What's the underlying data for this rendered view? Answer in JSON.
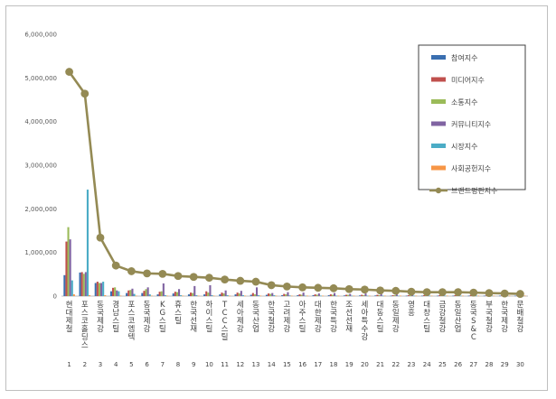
{
  "chart_data": {
    "type": "bar",
    "ylim": [
      0,
      6000000
    ],
    "yticks": [
      "0",
      "1,000,000",
      "2,000,000",
      "3,000,000",
      "4,000,000",
      "5,000,000",
      "6,000,000"
    ],
    "ytick_values": [
      0,
      1000000,
      2000000,
      3000000,
      4000000,
      5000000,
      6000000
    ],
    "grid": false,
    "legend_position": "top-right",
    "ranks": [
      "1",
      "2",
      "3",
      "4",
      "5",
      "6",
      "7",
      "8",
      "9",
      "10",
      "11",
      "12",
      "13",
      "14",
      "15",
      "16",
      "17",
      "18",
      "19",
      "20",
      "21",
      "22",
      "23",
      "24",
      "25",
      "26",
      "27",
      "28",
      "29",
      "30"
    ],
    "categories": [
      "현대제철",
      "포스코홀딩스",
      "동국제강",
      "경남스틸",
      "포스코엠텍",
      "동국제강",
      "KG스틸",
      "휴스틸",
      "한국선재",
      "하이스틸",
      "TCC스틸",
      "세아제강",
      "동국산업",
      "한국철강",
      "고려제강",
      "아주스틸",
      "대한제강",
      "한국특강",
      "조선선재",
      "세아특수강",
      "대동스틸",
      "동일제강",
      "영흥",
      "대창스틸",
      "금강철강",
      "동일산업",
      "동국S&C",
      "부국철강",
      "한국제강",
      "문배철강"
    ],
    "series": [
      {
        "name": "참여지수",
        "color": "#3a6fb0",
        "values": [
          480000,
          540000,
          300000,
          110000,
          70000,
          70000,
          40000,
          60000,
          40000,
          40000,
          40000,
          40000,
          30000,
          30000,
          20000,
          20000,
          20000,
          20000,
          15000,
          15000,
          15000,
          10000,
          10000,
          10000,
          10000,
          10000,
          10000,
          10000,
          10000,
          10000
        ]
      },
      {
        "name": "미디어지수",
        "color": "#c0504d",
        "values": [
          1250000,
          550000,
          330000,
          190000,
          130000,
          120000,
          100000,
          100000,
          80000,
          110000,
          80000,
          80000,
          70000,
          60000,
          50000,
          40000,
          40000,
          40000,
          30000,
          30000,
          30000,
          20000,
          20000,
          20000,
          20000,
          20000,
          20000,
          15000,
          15000,
          15000
        ]
      },
      {
        "name": "소통지수",
        "color": "#9bbb59",
        "values": [
          1580000,
          510000,
          300000,
          200000,
          140000,
          160000,
          110000,
          90000,
          70000,
          80000,
          60000,
          60000,
          40000,
          50000,
          40000,
          30000,
          30000,
          30000,
          30000,
          20000,
          20000,
          20000,
          15000,
          15000,
          15000,
          15000,
          15000,
          10000,
          10000,
          10000
        ]
      },
      {
        "name": "커뮤니티지수",
        "color": "#8064a2",
        "values": [
          1300000,
          550000,
          300000,
          130000,
          170000,
          200000,
          290000,
          160000,
          230000,
          250000,
          130000,
          120000,
          200000,
          70000,
          90000,
          80000,
          60000,
          70000,
          50000,
          60000,
          50000,
          40000,
          30000,
          30000,
          30000,
          30000,
          30000,
          20000,
          20000,
          20000
        ]
      },
      {
        "name": "시장지수",
        "color": "#4bacc6",
        "values": [
          360000,
          2440000,
          330000,
          110000,
          50000,
          40000,
          20000,
          20000,
          20000,
          20000,
          20000,
          20000,
          20000,
          20000,
          15000,
          10000,
          10000,
          10000,
          10000,
          10000,
          10000,
          10000,
          10000,
          10000,
          10000,
          10000,
          10000,
          10000,
          10000,
          10000
        ]
      },
      {
        "name": "사회공헌지수",
        "color": "#f79646",
        "values": [
          40000,
          20000,
          20000,
          10000,
          10000,
          10000,
          10000,
          10000,
          10000,
          10000,
          10000,
          10000,
          10000,
          10000,
          10000,
          10000,
          10000,
          10000,
          10000,
          10000,
          10000,
          10000,
          10000,
          10000,
          10000,
          10000,
          10000,
          10000,
          10000,
          10000
        ]
      }
    ],
    "line_series": {
      "name": "브랜드평판지수",
      "color": "#948a54",
      "values": [
        5140000,
        4640000,
        1340000,
        700000,
        570000,
        520000,
        510000,
        460000,
        440000,
        420000,
        380000,
        350000,
        330000,
        250000,
        220000,
        200000,
        190000,
        180000,
        160000,
        150000,
        130000,
        120000,
        100000,
        90000,
        90000,
        90000,
        80000,
        70000,
        60000,
        50000
      ]
    }
  }
}
